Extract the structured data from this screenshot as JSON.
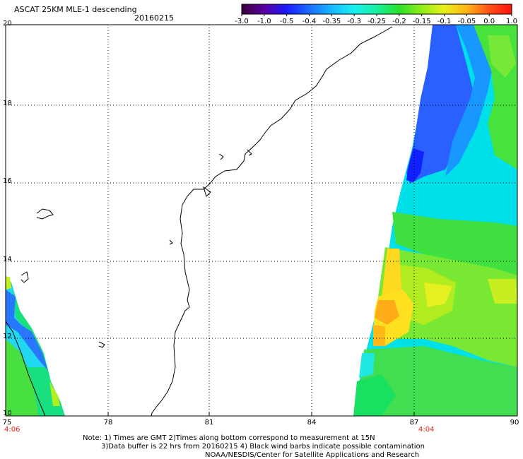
{
  "header": {
    "title": "ASCAT 25KM MLE-1 descending",
    "date": "20160215"
  },
  "colorbar": {
    "labels": [
      "-3.0",
      "-1.0",
      "-0.5",
      "-0.4",
      "-0.35",
      "-0.3",
      "-0.25",
      "-0.2",
      "-0.15",
      "-0.1",
      "-0.05",
      "0.0",
      "1.0"
    ],
    "colors": [
      "#3a003a",
      "#5a00a0",
      "#1a1aff",
      "#1a6cff",
      "#15b8ff",
      "#19f0f0",
      "#18f0a0",
      "#28e028",
      "#90ee18",
      "#e8f018",
      "#ffb414",
      "#ff5014",
      "#ff1010"
    ]
  },
  "map": {
    "lat_labels": [
      "20",
      "18",
      "16",
      "14",
      "12",
      "10"
    ],
    "lon_labels": [
      "75",
      "78",
      "81",
      "84",
      "87",
      "90"
    ],
    "time_labels": [
      "4:06",
      "4:04"
    ]
  },
  "notes": {
    "line1": "Note: 1) Times are GMT  2)Times along bottom correspond to measurement at 15N",
    "line2": "3)Data buffer is 22 hrs from 20160215  4) Black wind barbs indicate possible contamination",
    "line3": "NOAA/NESDIS/Center for Satellite Applications and Research"
  }
}
